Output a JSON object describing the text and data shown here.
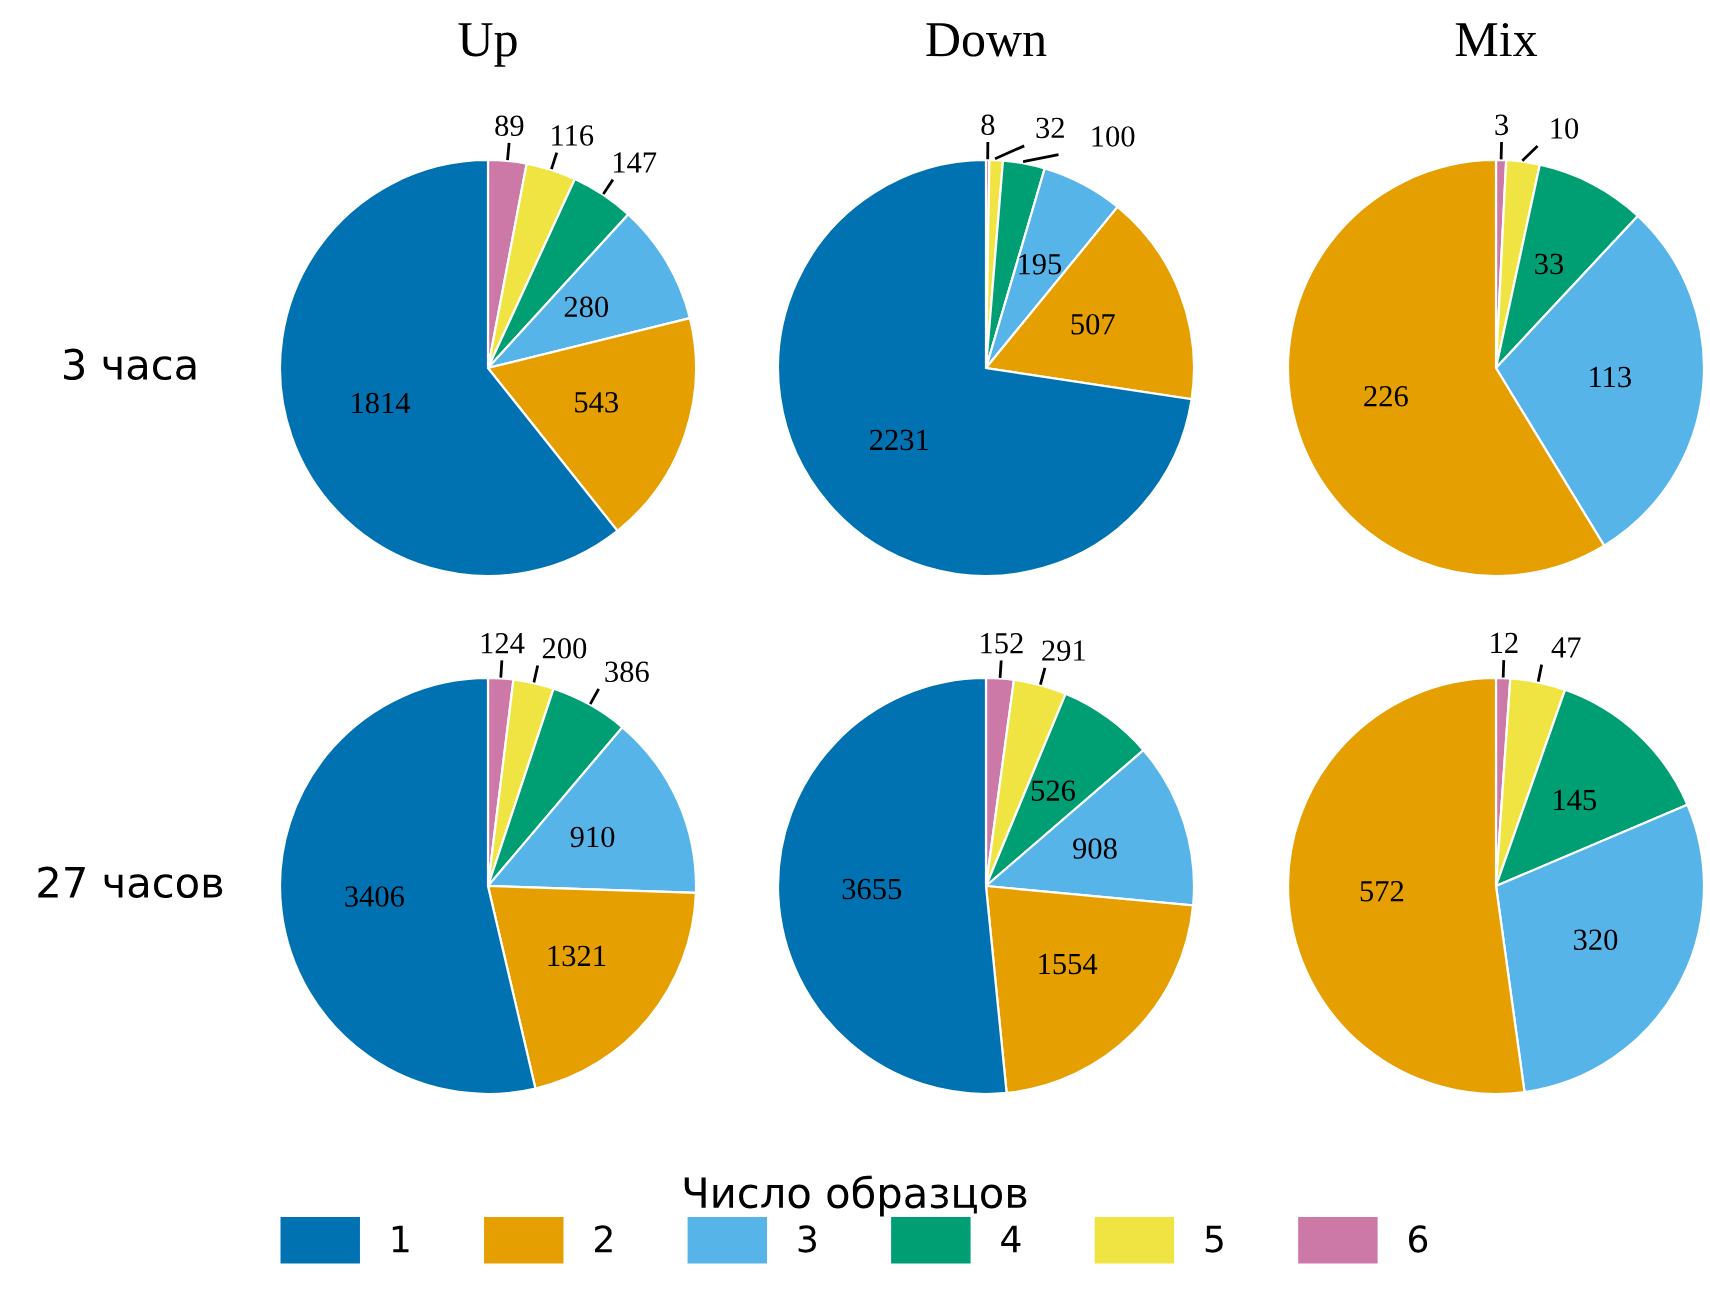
{
  "chart_data": [
    {
      "type": "pie",
      "title": "Up",
      "annotations": [
        "3 часа"
      ],
      "legend": "bottom",
      "legend_title": "Число образцов",
      "categories": [
        "1",
        "2",
        "3",
        "4",
        "5",
        "6"
      ],
      "values": [
        1814,
        543,
        280,
        147,
        116,
        89
      ],
      "colors": [
        "#0072b2",
        "#e69f00",
        "#56b4e9",
        "#009e73",
        "#f0e442",
        "#cc79a7"
      ],
      "data_labels": true
    },
    {
      "type": "pie",
      "title": "Down",
      "categories": [
        null,
        null,
        null,
        null,
        null,
        null
      ],
      "values": [
        2231,
        507,
        195,
        100,
        32,
        8
      ],
      "colors": [
        "#0072b2",
        "#e69f00",
        "#56b4e9",
        "#009e73",
        "#f0e442",
        "#cc79a7"
      ],
      "data_labels": true
    },
    {
      "type": "pie",
      "title": "Mix",
      "categories": [
        null,
        null,
        null,
        null,
        null,
        null
      ],
      "values": [
        null,
        226,
        113,
        33,
        10,
        3
      ],
      "colors": [
        "#0072b2",
        "#e69f00",
        "#56b4e9",
        "#009e73",
        "#f0e442",
        "#cc79a7"
      ],
      "data_labels": true
    },
    {
      "type": "pie",
      "annotations": [
        "27 часов"
      ],
      "categories": [
        null,
        null,
        null,
        null,
        null,
        null
      ],
      "values": [
        3406,
        1321,
        910,
        386,
        200,
        124
      ],
      "colors": [
        "#0072b2",
        "#e69f00",
        "#56b4e9",
        "#009e73",
        "#f0e442",
        "#cc79a7"
      ],
      "data_labels": true
    },
    {
      "type": "pie",
      "categories": [
        null,
        null,
        null,
        null,
        null,
        null
      ],
      "values": [
        3655,
        1554,
        908,
        526,
        291,
        152
      ],
      "colors": [
        "#0072b2",
        "#e69f00",
        "#56b4e9",
        "#009e73",
        "#f0e442",
        "#cc79a7"
      ],
      "data_labels": true
    },
    {
      "type": "pie",
      "categories": [
        null,
        null,
        null,
        null,
        null,
        null
      ],
      "values": [
        null,
        572,
        320,
        145,
        47,
        12
      ],
      "colors": [
        "#0072b2",
        "#e69f00",
        "#56b4e9",
        "#009e73",
        "#f0e442",
        "#cc79a7"
      ],
      "data_labels": true
    }
  ]
}
